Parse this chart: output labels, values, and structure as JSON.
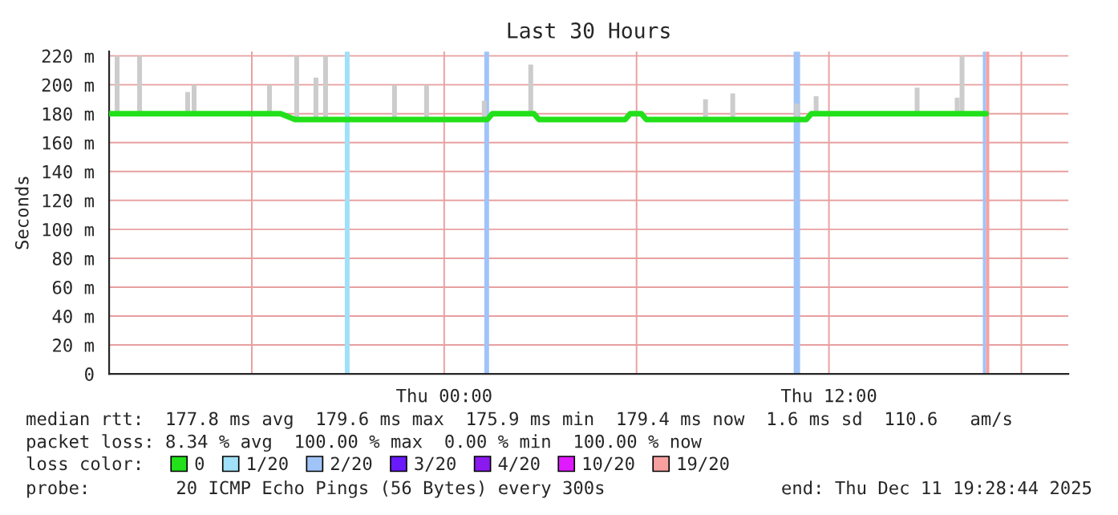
{
  "chart_data": {
    "type": "line",
    "title": "Last 30 Hours",
    "ylabel": "Seconds",
    "xlim": [
      "2025-12-10T13:33",
      "2025-12-11T19:28"
    ],
    "xticks": [
      {
        "value": "2025-12-10T18:00",
        "label": null
      },
      {
        "value": "2025-12-11T00:00",
        "label": "Thu 00:00"
      },
      {
        "value": "2025-12-11T06:00",
        "label": null
      },
      {
        "value": "2025-12-11T12:00",
        "label": "Thu 12:00"
      },
      {
        "value": "2025-12-11T18:00",
        "label": null
      }
    ],
    "ylim": [
      0,
      223
    ],
    "yticks": [
      0,
      {
        "value": 20,
        "label": "20 m"
      },
      {
        "value": 40,
        "label": "40 m"
      },
      {
        "value": 60,
        "label": "60 m"
      },
      {
        "value": 80,
        "label": "80 m"
      },
      {
        "value": 100,
        "label": "100 m"
      },
      {
        "value": 120,
        "label": "120 m"
      },
      {
        "value": 140,
        "label": "140 m"
      },
      {
        "value": 160,
        "label": "160 m"
      },
      {
        "value": 180,
        "label": "180 m"
      },
      {
        "value": 200,
        "label": "200 m"
      },
      {
        "value": 220,
        "label": "220 m"
      }
    ],
    "grid": true,
    "legend": "bottom",
    "legend_title": "loss color:",
    "series": [
      {
        "type": "bar",
        "color": "#cccccc",
        "x": [
          "2025-12-10T13:48",
          "2025-12-10T14:30",
          "2025-12-10T16:00",
          "2025-12-10T16:12",
          "2025-12-10T18:33",
          "2025-12-10T19:24",
          "2025-12-10T20:00",
          "2025-12-10T20:18",
          "2025-12-10T22:27",
          "2025-12-10T23:27",
          "2025-12-11T01:15",
          "2025-12-11T02:42",
          "2025-12-11T08:09",
          "2025-12-11T09:00",
          "2025-12-11T11:00",
          "2025-12-11T11:36",
          "2025-12-11T14:45",
          "2025-12-11T16:00",
          "2025-12-11T16:09"
        ],
        "base": [
          180,
          180,
          180,
          180,
          180,
          177,
          177,
          177,
          177,
          177,
          177,
          180,
          177,
          177,
          177,
          180,
          180,
          180,
          180
        ],
        "values": [
          40,
          40,
          15,
          20,
          20,
          43,
          28,
          43,
          23,
          23,
          12,
          34,
          13,
          17,
          10,
          12,
          18,
          11,
          40
        ]
      },
      {
        "name": "0",
        "color": "#22e01a",
        "x": [
          "2025-12-10T13:33",
          "2025-12-10T18:54",
          "2025-12-10T19:21",
          "2025-12-11T01:21",
          "2025-12-11T01:30",
          "2025-12-11T02:48",
          "2025-12-11T02:57",
          "2025-12-11T05:39",
          "2025-12-11T05:48",
          "2025-12-11T06:09",
          "2025-12-11T06:18",
          "2025-12-11T11:18",
          "2025-12-11T11:27",
          "2025-12-11T16:54"
        ],
        "values": [
          180,
          180,
          176,
          176,
          180,
          180,
          176,
          176,
          180,
          180,
          176,
          176,
          180,
          180
        ]
      },
      {
        "name": "3/20",
        "color": "#6a1aff"
      },
      {
        "name": "4/20",
        "color": "#8a1aee"
      },
      {
        "name": "10/20",
        "color": "#e01aff"
      }
    ],
    "bands": [
      {
        "axis": "x",
        "from": "2025-12-10T20:54",
        "to": "2025-12-10T21:03",
        "color": "#a0e0f8",
        "label": "1/20"
      },
      {
        "axis": "x",
        "from": "2025-12-11T01:15",
        "to": "2025-12-11T01:24",
        "color": "#a0c4f8",
        "label": "2/20"
      },
      {
        "axis": "x",
        "from": "2025-12-11T10:54",
        "to": "2025-12-11T11:06",
        "color": "#a0c4f8"
      },
      {
        "axis": "x",
        "from": "2025-12-11T16:48",
        "to": "2025-12-11T16:54",
        "color": "#a0c4f8"
      },
      {
        "axis": "x",
        "from": "2025-12-11T16:54",
        "to": "2025-12-11T17:00",
        "color": "#f8a0a0",
        "label": "19/20"
      }
    ],
    "annotations": [
      "median rtt:  177.8 ms avg  179.6 ms max  175.9 ms min  179.4 ms now  1.6 ms sd  110.6   am/s",
      "packet loss: 8.34 % avg  100.00 % max  0.00 % min  100.00 % now",
      "probe:        20 ICMP Echo Pings (56 Bytes) every 300s",
      "end: Thu Dec 11 19:28:44 2025"
    ]
  }
}
